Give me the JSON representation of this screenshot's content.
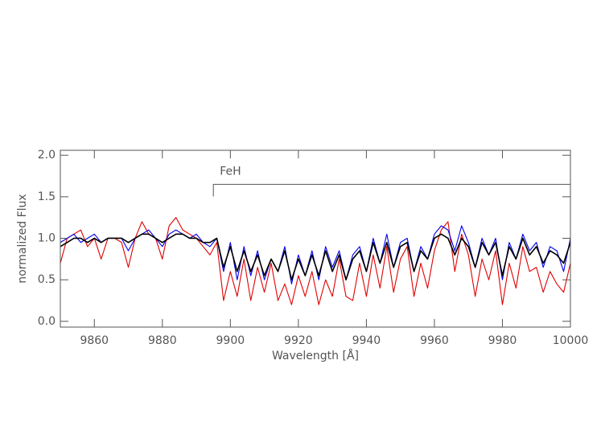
{
  "chart_data": {
    "type": "line",
    "xlabel": "Wavelength [Å]",
    "ylabel": "normalized Flux",
    "x": [
      9850,
      9852,
      9854,
      9856,
      9858,
      9860,
      9862,
      9864,
      9866,
      9868,
      9870,
      9872,
      9874,
      9876,
      9878,
      9880,
      9882,
      9884,
      9886,
      9888,
      9890,
      9892,
      9894,
      9896,
      9898,
      9900,
      9902,
      9904,
      9906,
      9908,
      9910,
      9912,
      9914,
      9916,
      9918,
      9920,
      9922,
      9924,
      9926,
      9928,
      9930,
      9932,
      9934,
      9936,
      9938,
      9940,
      9942,
      9944,
      9946,
      9948,
      9950,
      9952,
      9954,
      9956,
      9958,
      9960,
      9962,
      9964,
      9966,
      9968,
      9970,
      9972,
      9974,
      9976,
      9978,
      9980,
      9982,
      9984,
      9986,
      9988,
      9990,
      9992,
      9994,
      9996,
      9998,
      10000
    ],
    "series": [
      {
        "color": "#e00000",
        "values": [
          0.7,
          1.0,
          1.05,
          1.1,
          0.9,
          1.0,
          0.75,
          1.0,
          1.0,
          0.95,
          0.65,
          1.0,
          1.2,
          1.05,
          1.0,
          0.75,
          1.15,
          1.25,
          1.1,
          1.05,
          1.0,
          0.9,
          0.8,
          0.95,
          0.25,
          0.6,
          0.3,
          0.75,
          0.25,
          0.65,
          0.35,
          0.7,
          0.25,
          0.45,
          0.2,
          0.55,
          0.3,
          0.6,
          0.2,
          0.5,
          0.3,
          0.75,
          0.3,
          0.25,
          0.7,
          0.3,
          0.8,
          0.4,
          0.9,
          0.35,
          0.75,
          0.9,
          0.3,
          0.7,
          0.4,
          0.85,
          1.1,
          1.2,
          0.6,
          1.05,
          0.8,
          0.3,
          0.75,
          0.5,
          0.85,
          0.2,
          0.7,
          0.4,
          0.9,
          0.6,
          0.65,
          0.35,
          0.6,
          0.45,
          0.35,
          0.7
        ]
      },
      {
        "color": "#0000ee",
        "values": [
          0.95,
          1.0,
          1.05,
          0.95,
          1.0,
          1.05,
          0.95,
          1.0,
          1.0,
          1.0,
          0.85,
          1.0,
          1.05,
          1.1,
          1.0,
          0.9,
          1.05,
          1.1,
          1.05,
          1.0,
          1.05,
          0.95,
          0.9,
          1.0,
          0.6,
          0.95,
          0.5,
          0.9,
          0.55,
          0.85,
          0.5,
          0.75,
          0.6,
          0.9,
          0.45,
          0.8,
          0.55,
          0.85,
          0.5,
          0.9,
          0.65,
          0.85,
          0.5,
          0.8,
          0.9,
          0.6,
          1.0,
          0.7,
          1.05,
          0.65,
          0.95,
          1.0,
          0.6,
          0.9,
          0.75,
          1.05,
          1.15,
          1.1,
          0.85,
          1.15,
          0.95,
          0.65,
          1.0,
          0.8,
          1.0,
          0.5,
          0.95,
          0.75,
          1.05,
          0.85,
          0.95,
          0.65,
          0.9,
          0.85,
          0.6,
          1.0
        ]
      },
      {
        "color": "#000000",
        "values": [
          0.9,
          0.95,
          1.0,
          1.0,
          0.95,
          1.0,
          0.95,
          1.0,
          1.0,
          1.0,
          0.95,
          1.0,
          1.05,
          1.05,
          1.0,
          0.95,
          1.0,
          1.05,
          1.05,
          1.0,
          1.0,
          0.95,
          0.95,
          1.0,
          0.65,
          0.9,
          0.6,
          0.85,
          0.6,
          0.8,
          0.55,
          0.75,
          0.6,
          0.85,
          0.5,
          0.75,
          0.55,
          0.8,
          0.55,
          0.85,
          0.6,
          0.8,
          0.5,
          0.75,
          0.85,
          0.6,
          0.95,
          0.7,
          0.95,
          0.65,
          0.9,
          0.95,
          0.6,
          0.85,
          0.75,
          1.0,
          1.05,
          1.0,
          0.8,
          1.0,
          0.9,
          0.65,
          0.95,
          0.8,
          0.95,
          0.55,
          0.9,
          0.75,
          1.0,
          0.8,
          0.9,
          0.7,
          0.85,
          0.8,
          0.7,
          0.95
        ]
      }
    ],
    "xlim": [
      9850,
      10000
    ],
    "xticks": [
      9860,
      9880,
      9900,
      9920,
      9940,
      9960,
      9980,
      10000
    ],
    "ylim": [
      -0.07,
      2.06
    ],
    "yticks": [
      {
        "value": 0,
        "label": "0.0"
      },
      0.5,
      {
        "value": 1,
        "label": "1.0"
      },
      1.5,
      {
        "value": 2,
        "label": "2.0"
      }
    ],
    "annotations": [
      {
        "text": "FeH",
        "x": [
          9895,
          10000
        ],
        "y": 1.65
      }
    ]
  }
}
